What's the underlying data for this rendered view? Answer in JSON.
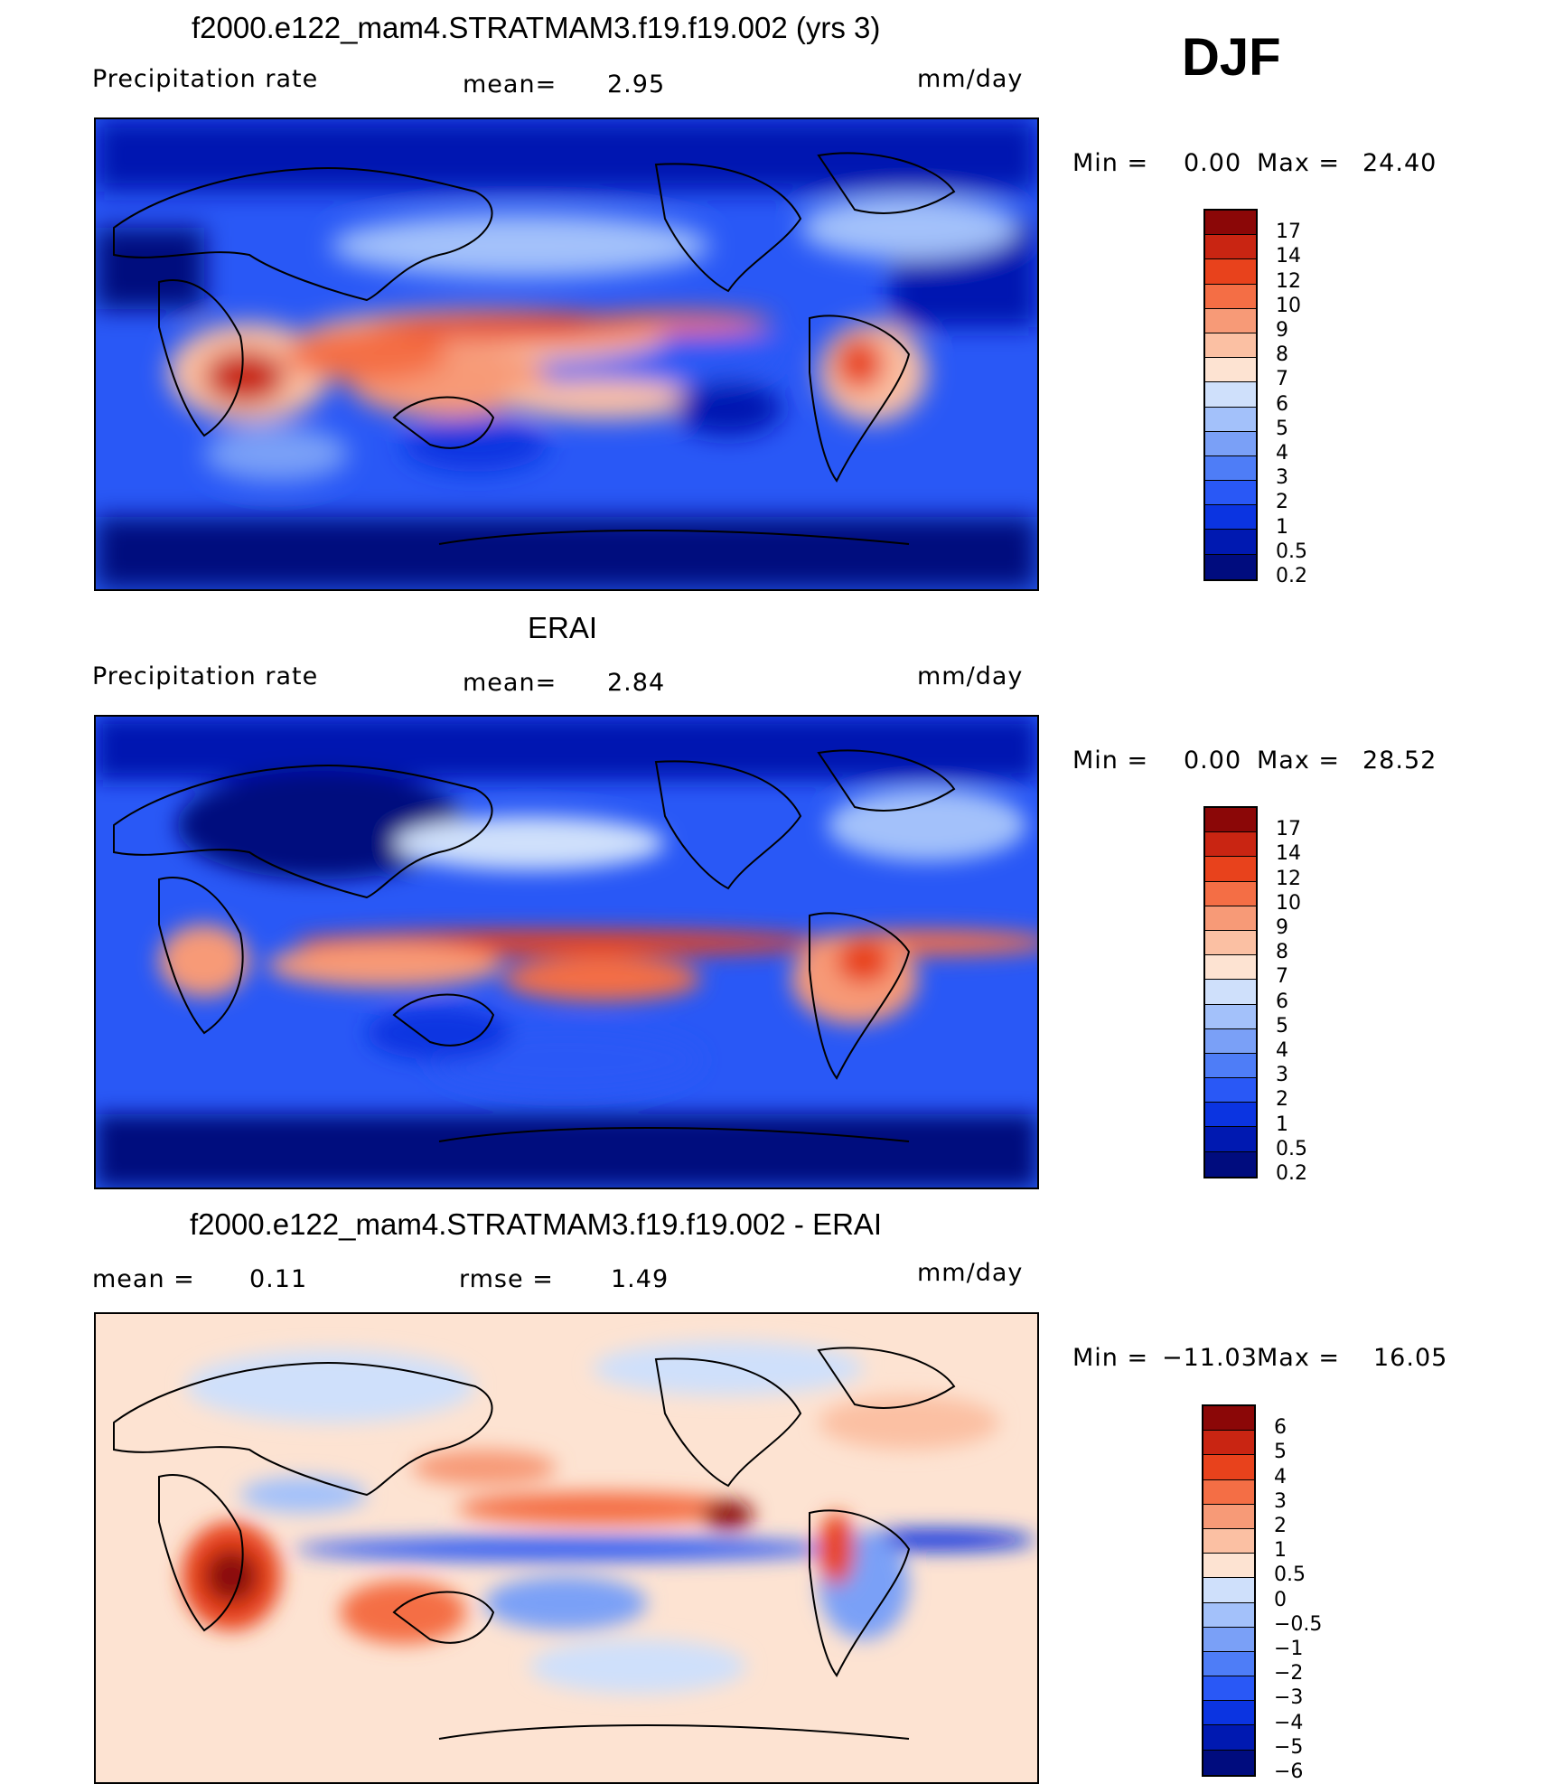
{
  "season": "DJF",
  "units": "mm/day",
  "colors": {
    "abs_scale": [
      "#000c7e",
      "#0019b1",
      "#0b34e1",
      "#2958f6",
      "#4e7df7",
      "#7aa0f7",
      "#a3c1fa",
      "#cfe0fb",
      "#fde3d2",
      "#fbc0a3",
      "#f79a77",
      "#f46e45",
      "#e8421c",
      "#c92512",
      "#8b0707"
    ],
    "diff_scale": [
      "#000c7e",
      "#0019b1",
      "#0b34e1",
      "#2958f6",
      "#4e7df7",
      "#7aa0f7",
      "#a3c1fa",
      "#cfe0fb",
      "#fde3d2",
      "#fbc0a3",
      "#f79a77",
      "#f46e45",
      "#e8421c",
      "#c92512",
      "#8b0707"
    ]
  },
  "panels": [
    {
      "title": "f2000.e122_mam4.STRATMAM3.f19.f19.002 (yrs 3)",
      "left_label": "Precipitation rate",
      "mid_label": "mean=",
      "mid_value": "2.95",
      "units": "mm/day",
      "min_label": "Min =",
      "min_value": "0.00",
      "max_label": "Max =",
      "max_value": "24.40",
      "colorbar_ticks": [
        "17",
        "14",
        "12",
        "10",
        "9",
        "8",
        "7",
        "6",
        "5",
        "4",
        "3",
        "2",
        "1",
        "0.5",
        "0.2"
      ],
      "scale": "abs_scale"
    },
    {
      "title": "ERAI",
      "left_label": "Precipitation rate",
      "mid_label": "mean=",
      "mid_value": "2.84",
      "units": "mm/day",
      "min_label": "Min =",
      "min_value": "0.00",
      "max_label": "Max =",
      "max_value": "28.52",
      "colorbar_ticks": [
        "17",
        "14",
        "12",
        "10",
        "9",
        "8",
        "7",
        "6",
        "5",
        "4",
        "3",
        "2",
        "1",
        "0.5",
        "0.2"
      ],
      "scale": "abs_scale"
    },
    {
      "title": "f2000.e122_mam4.STRATMAM3.f19.f19.002 - ERAI",
      "left_label": "mean =",
      "left_value": "0.11",
      "mid_label": "rmse =",
      "mid_value": "1.49",
      "units": "mm/day",
      "min_label": "Min =",
      "min_value": "−11.03",
      "max_label": "Max =",
      "max_value": "16.05",
      "colorbar_ticks": [
        "6",
        "5",
        "4",
        "3",
        "2",
        "1",
        "0.5",
        "0",
        "−0.5",
        "−1",
        "−2",
        "−3",
        "−4",
        "−5",
        "−6"
      ],
      "scale": "diff_scale"
    }
  ]
}
